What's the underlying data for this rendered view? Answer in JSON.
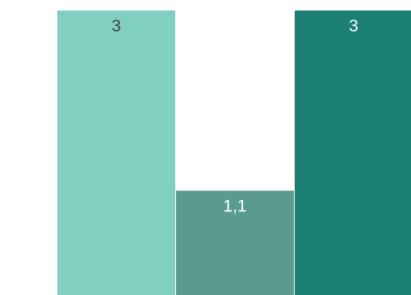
{
  "chart_data": {
    "type": "bar",
    "categories": [
      "",
      "",
      ""
    ],
    "values": [
      3,
      1.1,
      3
    ],
    "labels": [
      "3",
      "1,1",
      "3"
    ],
    "colors": [
      "#80cfc0",
      "#5a9b8f",
      "#1b7f74"
    ],
    "label_colors": [
      "#404040",
      "#ffffff",
      "#ffffff"
    ],
    "ylim": [
      0,
      3
    ],
    "grid": false,
    "title": "",
    "xlabel": "",
    "ylabel": ""
  }
}
